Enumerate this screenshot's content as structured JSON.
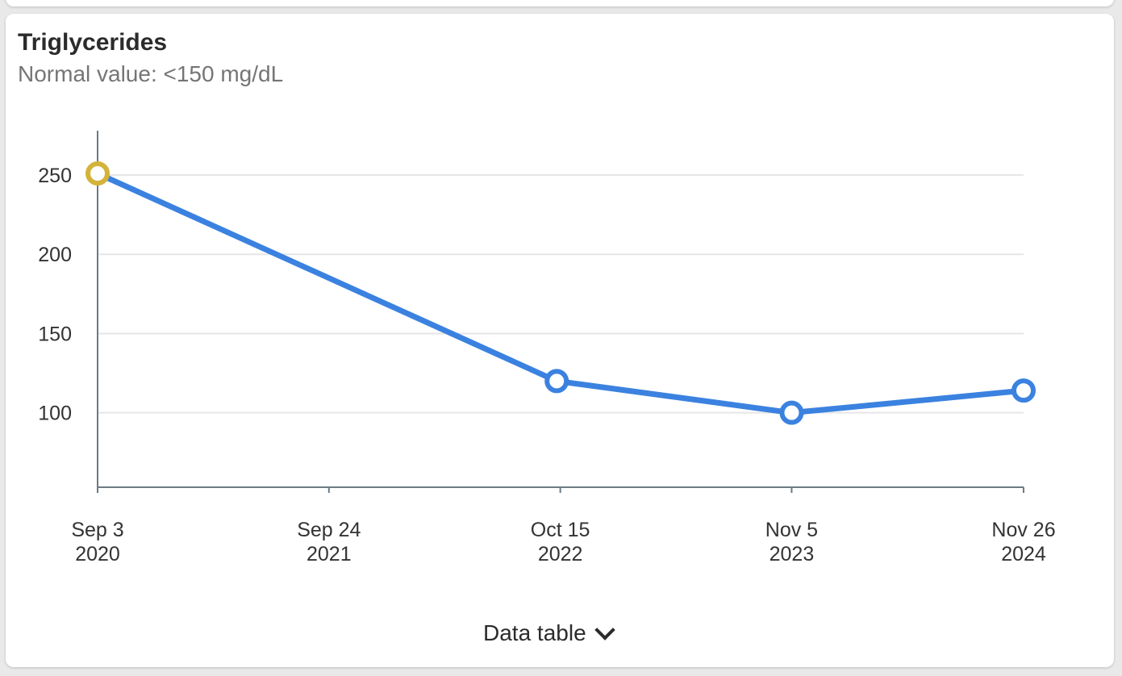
{
  "card": {
    "title": "Triglycerides",
    "subtitle": "Normal value: <150 mg/dL",
    "toggle_label": "Data table",
    "toggle_icon": "chevron-down-icon"
  },
  "colors": {
    "line": "#3b82e0",
    "highlight_point": "#d4b33a",
    "grid": "#e6e6e6",
    "axis": "#6b7b85"
  },
  "chart_data": {
    "type": "line",
    "x_type": "date",
    "x_ticks": [
      {
        "date": "2020-09-03",
        "label": [
          "Sep 3",
          "2020"
        ]
      },
      {
        "date": "2021-09-24",
        "label": [
          "Sep 24",
          "2021"
        ]
      },
      {
        "date": "2022-10-15",
        "label": [
          "Oct 15",
          "2022"
        ]
      },
      {
        "date": "2023-11-05",
        "label": [
          "Nov 5",
          "2023"
        ]
      },
      {
        "date": "2024-11-26",
        "label": [
          "Nov 26",
          "2024"
        ]
      }
    ],
    "xlim": [
      "2020-09-03",
      "2024-11-26"
    ],
    "y_ticks": [
      100,
      150,
      200,
      250
    ],
    "ylim": [
      53,
      278
    ],
    "grid": true,
    "series": [
      {
        "points": [
          {
            "x": "2020-09-03",
            "y": 251,
            "highlight": true
          },
          {
            "x": "2022-10-09",
            "y": 120
          },
          {
            "x": "2023-11-05",
            "y": 100
          },
          {
            "x": "2024-11-26",
            "y": 114
          }
        ]
      }
    ]
  }
}
